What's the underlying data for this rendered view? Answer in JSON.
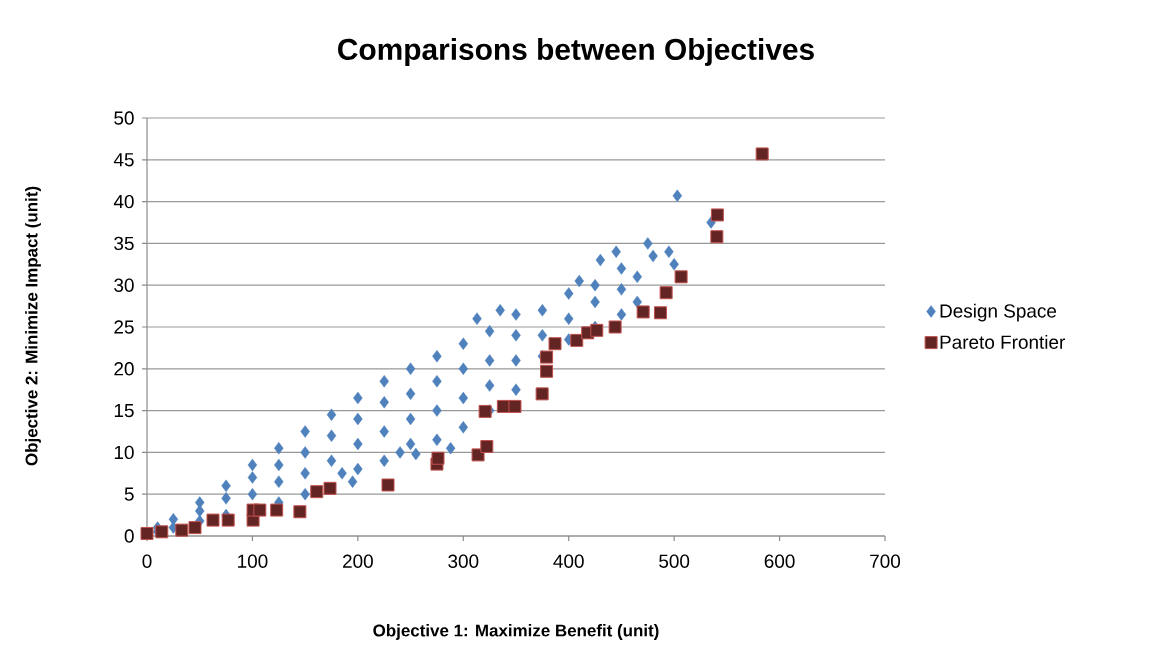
{
  "chart_data": {
    "type": "scatter",
    "title": "Comparisons between Objectives",
    "xlabel": "Objective 1: Maximize Benefit (unit)",
    "ylabel": "Objective 2: Minimize Impact (unit)",
    "xlim": [
      0,
      700
    ],
    "ylim": [
      0,
      50
    ],
    "xticks": [
      0,
      100,
      200,
      300,
      400,
      500,
      600,
      700
    ],
    "yticks": [
      0,
      5,
      10,
      15,
      20,
      25,
      30,
      35,
      40,
      45,
      50
    ],
    "grid": "y",
    "legend": "right",
    "series": [
      {
        "name": "Design Space",
        "color": "#4f81bd",
        "marker": "diamond",
        "x": [
          10,
          10,
          25,
          25,
          50,
          50,
          50,
          75,
          75,
          75,
          100,
          100,
          100,
          125,
          125,
          125,
          125,
          150,
          150,
          150,
          150,
          185,
          175,
          175,
          175,
          195,
          200,
          200,
          200,
          200,
          225,
          225,
          225,
          225,
          240,
          250,
          250,
          250,
          250,
          255,
          275,
          275,
          275,
          275,
          288,
          300,
          300,
          300,
          300,
          313,
          325,
          325,
          325,
          325,
          335,
          350,
          350,
          350,
          350,
          375,
          375,
          375,
          400,
          400,
          400,
          410,
          425,
          425,
          425,
          430,
          445,
          450,
          450,
          450,
          465,
          465,
          475,
          480,
          495,
          500,
          503,
          535
        ],
        "values": [
          0.5,
          1,
          1,
          2,
          1.8,
          3,
          4,
          2.5,
          4.5,
          6,
          5,
          7,
          8.5,
          4,
          6.5,
          8.5,
          10.5,
          5,
          7.5,
          10,
          12.5,
          7.5,
          9,
          12,
          14.5,
          6.5,
          8,
          11,
          14,
          16.5,
          9,
          12.5,
          16,
          18.5,
          10,
          11,
          14,
          17,
          20,
          9.8,
          11.5,
          15,
          18.5,
          21.5,
          10.5,
          13,
          16.5,
          20,
          23,
          26,
          15,
          18,
          21,
          24.5,
          27,
          17.5,
          21,
          24,
          26.5,
          21.5,
          24,
          27,
          23.5,
          26,
          29,
          30.5,
          25,
          28,
          30,
          33,
          34,
          26.5,
          29.5,
          32,
          28,
          31,
          35,
          33.5,
          34,
          32.5,
          40.7,
          37.5
        ]
      },
      {
        "name": "Pareto Frontier",
        "color": "#632523",
        "marker": "square",
        "x": [
          0,
          14,
          33,
          45.5,
          62.6,
          77,
          100.6,
          100.6,
          107,
          123,
          145,
          161,
          173.6,
          228.6,
          275,
          276,
          314,
          322.3,
          320.7,
          338,
          349,
          374.8,
          379,
          379,
          387,
          407.6,
          418,
          426.6,
          444,
          470.6,
          487,
          492.4,
          506.6,
          540.5,
          541,
          583.5
        ],
        "values": [
          0.3,
          0.5,
          0.7,
          1,
          1.9,
          1.9,
          1.9,
          3.1,
          3.1,
          3.1,
          2.9,
          5.3,
          5.7,
          6.1,
          8.6,
          9.3,
          9.7,
          10.7,
          14.9,
          15.5,
          15.5,
          17,
          19.7,
          21.4,
          23,
          23.4,
          24.3,
          24.6,
          25,
          26.8,
          26.7,
          29.1,
          31,
          35.8,
          38.4,
          45.7
        ]
      }
    ]
  }
}
